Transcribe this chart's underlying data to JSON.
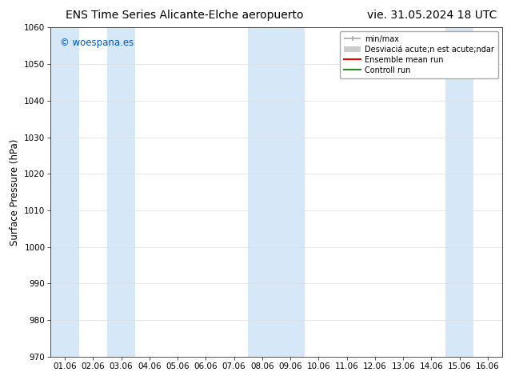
{
  "title_left": "ENS Time Series Alicante-Elche aeropuerto",
  "title_right": "vie. 31.05.2024 18 UTC",
  "ylabel": "Surface Pressure (hPa)",
  "ylim": [
    970,
    1060
  ],
  "yticks": [
    970,
    980,
    990,
    1000,
    1010,
    1020,
    1030,
    1040,
    1050,
    1060
  ],
  "xtick_labels": [
    "01.06",
    "02.06",
    "03.06",
    "04.06",
    "05.06",
    "06.06",
    "07.06",
    "08.06",
    "09.06",
    "10.06",
    "11.06",
    "12.06",
    "13.06",
    "14.06",
    "15.06",
    "16.06"
  ],
  "watermark": "© woespana.es",
  "watermark_color": "#0055cc",
  "bg_color": "#ffffff",
  "plot_bg_color": "#ffffff",
  "band_color": "#d6e8f7",
  "shaded_bands": [
    {
      "xstart": 0,
      "xend": 1
    },
    {
      "xstart": 2,
      "xend": 3
    },
    {
      "xstart": 7,
      "xend": 9
    },
    {
      "xstart": 14,
      "xend": 15
    }
  ],
  "legend_minmax_color": "#aaaaaa",
  "legend_std_color": "#cccccc",
  "legend_ensemble_color": "#ff0000",
  "legend_control_color": "#228b22",
  "title_fontsize": 10,
  "tick_fontsize": 7.5,
  "ylabel_fontsize": 8.5,
  "watermark_fontsize": 8.5,
  "legend_fontsize": 7
}
